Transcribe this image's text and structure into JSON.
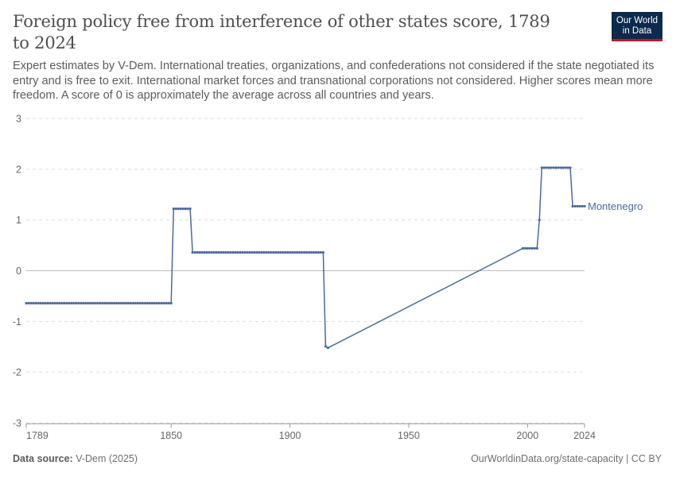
{
  "header": {
    "title": "Foreign policy free from interference of other states score, 1789 to 2024",
    "subtitle": "Expert estimates by V-Dem. International treaties, organizations, and confederations not considered if the state negotiated its entry and is free to exit. International market forces and transnational corporations not considered. Higher scores mean more freedom. A score of 0 is approximately the average across all countries and years.",
    "logo_line1": "Our World",
    "logo_line2": "in Data"
  },
  "footer": {
    "source_label": "Data source:",
    "source_value": "V-Dem (2025)",
    "link": "OurWorldinData.org/state-capacity | CC BY"
  },
  "colors": {
    "series": "#4c6a9c",
    "grid": "#dddddd",
    "zero_line": "#bbbbbb",
    "logo_bg": "#0c2a4b",
    "logo_accent": "#c3162e"
  },
  "chart_data": {
    "type": "line",
    "xlim": [
      1789,
      2024
    ],
    "ylim": [
      -3,
      3
    ],
    "x_ticks": [
      1789,
      1850,
      1900,
      1950,
      2000,
      2024
    ],
    "y_ticks": [
      3,
      2,
      1,
      0,
      -1,
      -2,
      -3
    ],
    "grid": "horizontal dashed",
    "series": [
      {
        "name": "Montenegro",
        "segments": [
          {
            "x_start": 1789,
            "x_end": 1850,
            "y": -0.64
          },
          {
            "x_start": 1851,
            "x_end": 1858,
            "y": 1.22
          },
          {
            "x_start": 1859,
            "x_end": 1914,
            "y": 0.36
          },
          {
            "x": [
              1915,
              1916,
              1998,
              1999,
              2000,
              2001,
              2002,
              2003,
              2004,
              2005
            ],
            "y": [
              -1.49,
              -1.52,
              0.44,
              0.44,
              0.44,
              0.44,
              0.44,
              0.44,
              0.44,
              1.0
            ]
          },
          {
            "x_start": 2006,
            "x_end": 2018,
            "y": 2.03
          },
          {
            "x_start": 2019,
            "x_end": 2024,
            "y": 1.27
          }
        ]
      }
    ]
  }
}
